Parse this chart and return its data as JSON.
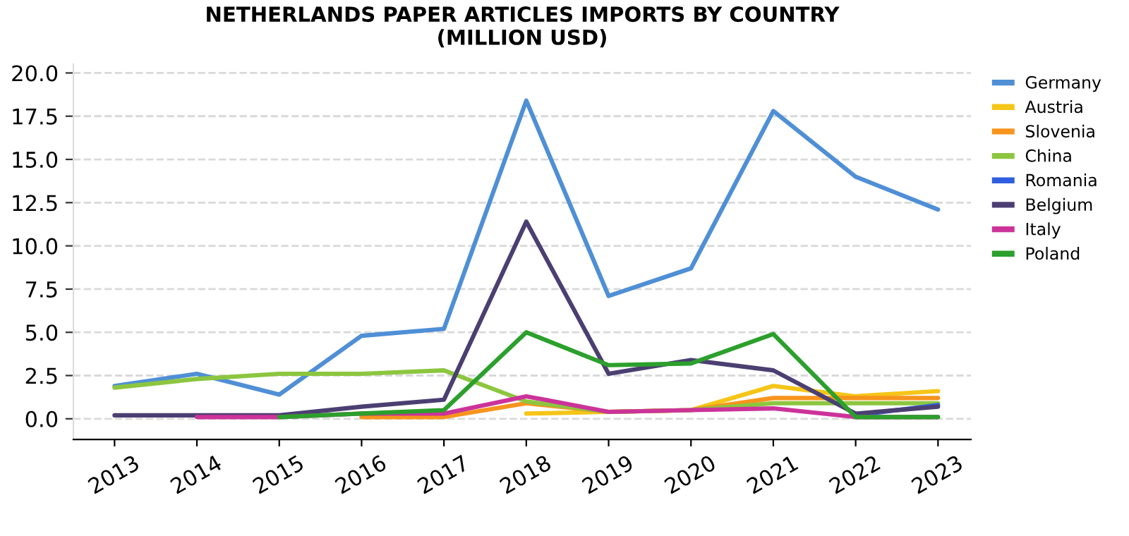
{
  "chart_data": {
    "type": "line",
    "title": "NETHERLANDS PAPER ARTICLES IMPORTS BY COUNTRY\n(MILLION USD)",
    "x": [
      2013,
      2014,
      2015,
      2016,
      2017,
      2018,
      2019,
      2020,
      2021,
      2022,
      2023
    ],
    "series": [
      {
        "name": "Germany",
        "color": "#4f8fd6",
        "values": [
          1.9,
          2.6,
          1.4,
          4.8,
          5.2,
          18.4,
          7.1,
          8.7,
          17.8,
          14.0,
          12.1
        ]
      },
      {
        "name": "Austria",
        "color": "#f5c518",
        "values": [
          null,
          null,
          null,
          null,
          null,
          0.3,
          0.4,
          0.5,
          1.9,
          1.3,
          1.6
        ]
      },
      {
        "name": "Slovenia",
        "color": "#f7941d",
        "values": [
          null,
          null,
          null,
          0.1,
          0.1,
          0.9,
          0.4,
          0.5,
          1.2,
          1.2,
          1.2
        ]
      },
      {
        "name": "China",
        "color": "#8cc63f",
        "values": [
          1.8,
          2.3,
          2.6,
          2.6,
          2.8,
          1.0,
          0.4,
          0.5,
          0.9,
          0.9,
          0.9
        ]
      },
      {
        "name": "Romania",
        "color": "#2f5fe0",
        "values": [
          null,
          null,
          null,
          null,
          null,
          null,
          null,
          null,
          null,
          0.2,
          0.8
        ]
      },
      {
        "name": "Belgium",
        "color": "#4b3f72",
        "values": [
          0.2,
          0.2,
          0.2,
          0.7,
          1.1,
          11.4,
          2.6,
          3.4,
          2.8,
          0.3,
          0.7
        ]
      },
      {
        "name": "Italy",
        "color": "#cc3399",
        "values": [
          null,
          0.1,
          0.1,
          0.3,
          0.3,
          1.3,
          0.4,
          0.5,
          0.6,
          0.1,
          0.1
        ]
      },
      {
        "name": "Poland",
        "color": "#2ca02c",
        "values": [
          null,
          null,
          0.1,
          0.3,
          0.5,
          5.0,
          3.1,
          3.2,
          4.9,
          0.1,
          0.1
        ]
      }
    ],
    "xlim": [
      2012.5,
      2023.4
    ],
    "xticks": [
      2013,
      2014,
      2015,
      2016,
      2017,
      2018,
      2019,
      2020,
      2021,
      2022,
      2023
    ],
    "ylim": [
      -1.2,
      20.5
    ],
    "yticks": [
      {
        "value": 0,
        "label": "0.0"
      },
      2.5,
      {
        "value": 5,
        "label": "5.0"
      },
      7.5,
      {
        "value": 10,
        "label": "10.0"
      },
      12.5,
      {
        "value": 15,
        "label": "15.0"
      },
      17.5,
      {
        "value": 20,
        "label": "20.0"
      }
    ],
    "grid": "y",
    "legend": "right",
    "line_style": "solid",
    "marker": "none"
  }
}
